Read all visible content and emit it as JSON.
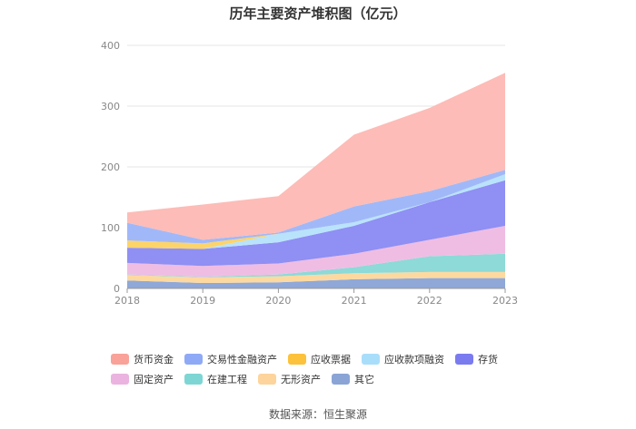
{
  "chart_data": {
    "type": "area",
    "stacked": true,
    "title": "历年主要资产堆积图（亿元）",
    "xlabel": "",
    "ylabel": "",
    "x": [
      "2018",
      "2019",
      "2020",
      "2021",
      "2022",
      "2023"
    ],
    "ylim": [
      0,
      400
    ],
    "yticks": [
      0,
      100,
      200,
      300,
      400
    ],
    "grid": true,
    "legend_position": "bottom",
    "series": [
      {
        "name": "其它",
        "color": "#8fa8d8",
        "values": [
          13,
          9,
          10,
          15,
          17,
          17
        ]
      },
      {
        "name": "无形资产",
        "color": "#fdd9a0",
        "values": [
          9,
          9,
          10,
          10,
          10,
          10
        ]
      },
      {
        "name": "在建工程",
        "color": "#8ddad8",
        "values": [
          1,
          1,
          3,
          10,
          26,
          30
        ]
      },
      {
        "name": "固定资产",
        "color": "#efbde3",
        "values": [
          19,
          18,
          18,
          22,
          27,
          46
        ]
      },
      {
        "name": "存货",
        "color": "#8f8ff4",
        "values": [
          25,
          28,
          35,
          46,
          62,
          75
        ]
      },
      {
        "name": "应收款项融资",
        "color": "#b9e3fb",
        "values": [
          0,
          0,
          14,
          6,
          0,
          10
        ]
      },
      {
        "name": "应收票据",
        "color": "#fdd46a",
        "values": [
          12,
          9,
          0,
          0,
          0,
          0
        ]
      },
      {
        "name": "交易性金融资产",
        "color": "#a1b8f8",
        "values": [
          29,
          6,
          2,
          26,
          18,
          7
        ]
      },
      {
        "name": "货币资金",
        "color": "#fdbcb7",
        "values": [
          17,
          58,
          60,
          118,
          137,
          160
        ]
      }
    ],
    "legend_order": [
      "货币资金",
      "交易性金融资产",
      "应收票据",
      "应收款项融资",
      "存货",
      "固定资产",
      "在建工程",
      "无形资产",
      "其它"
    ],
    "legend_colors": [
      "#f8a29a",
      "#8eaaf7",
      "#fcc23c",
      "#a9defb",
      "#7b7bf0",
      "#ebb3e0",
      "#7dd6d4",
      "#fdd49c",
      "#8aa4d6"
    ]
  },
  "source": "数据来源：恒生聚源"
}
